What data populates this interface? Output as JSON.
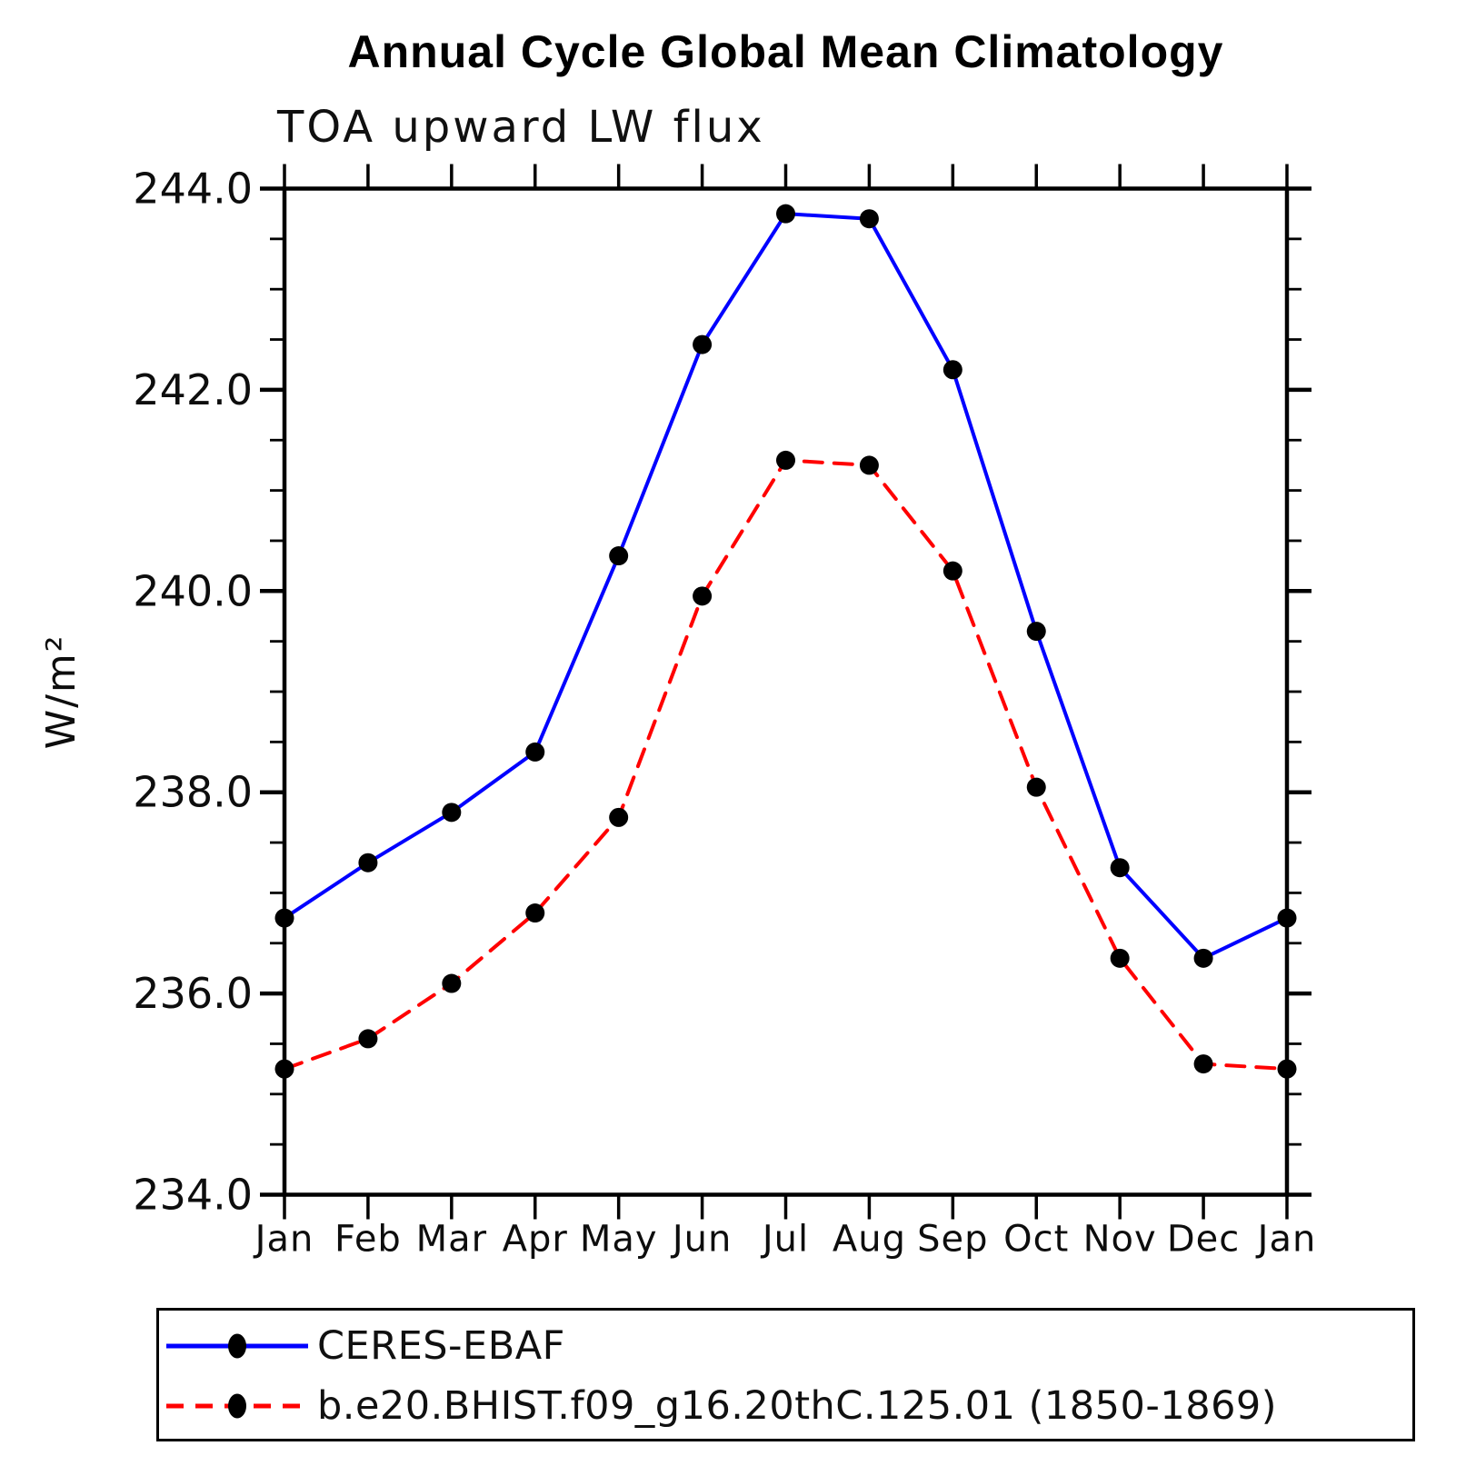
{
  "chart": {
    "title": "Annual Cycle Global Mean Climatology",
    "subtitle": "TOA upward LW flux",
    "y_axis_title": "W/m²"
  },
  "chart_data": {
    "type": "line",
    "title": "Annual Cycle Global Mean Climatology",
    "subtitle": "TOA upward LW flux",
    "xlabel": "",
    "ylabel": "W/m²",
    "categories": [
      "Jan",
      "Feb",
      "Mar",
      "Apr",
      "May",
      "Jun",
      "Jul",
      "Aug",
      "Sep",
      "Oct",
      "Nov",
      "Dec",
      "Jan"
    ],
    "ylim": [
      234.0,
      244.0
    ],
    "y_major_tick_step": 2.0,
    "y_minor_tick_step": 0.5,
    "y_tick_labels": [
      "234.0",
      "236.0",
      "238.0",
      "240.0",
      "242.0",
      "244.0"
    ],
    "grid": false,
    "legend_position": "bottom",
    "background_color": "#ffffff",
    "axis_color": "#000000",
    "marker_shape": "filled-circle",
    "marker_color": "#000000",
    "series": [
      {
        "name": "CERES-EBAF",
        "color": "#0000ff",
        "style": "solid",
        "values": [
          236.75,
          237.3,
          237.8,
          238.4,
          240.35,
          242.45,
          243.75,
          243.7,
          242.2,
          239.6,
          237.25,
          236.35,
          236.75
        ]
      },
      {
        "name": "b.e20.BHIST.f09_g16.20thC.125.01 (1850-1869)",
        "color": "#ff0000",
        "style": "dashed",
        "values": [
          235.25,
          235.55,
          236.1,
          236.8,
          237.75,
          239.95,
          241.3,
          241.25,
          240.2,
          238.05,
          236.35,
          235.3,
          235.25
        ]
      }
    ]
  }
}
